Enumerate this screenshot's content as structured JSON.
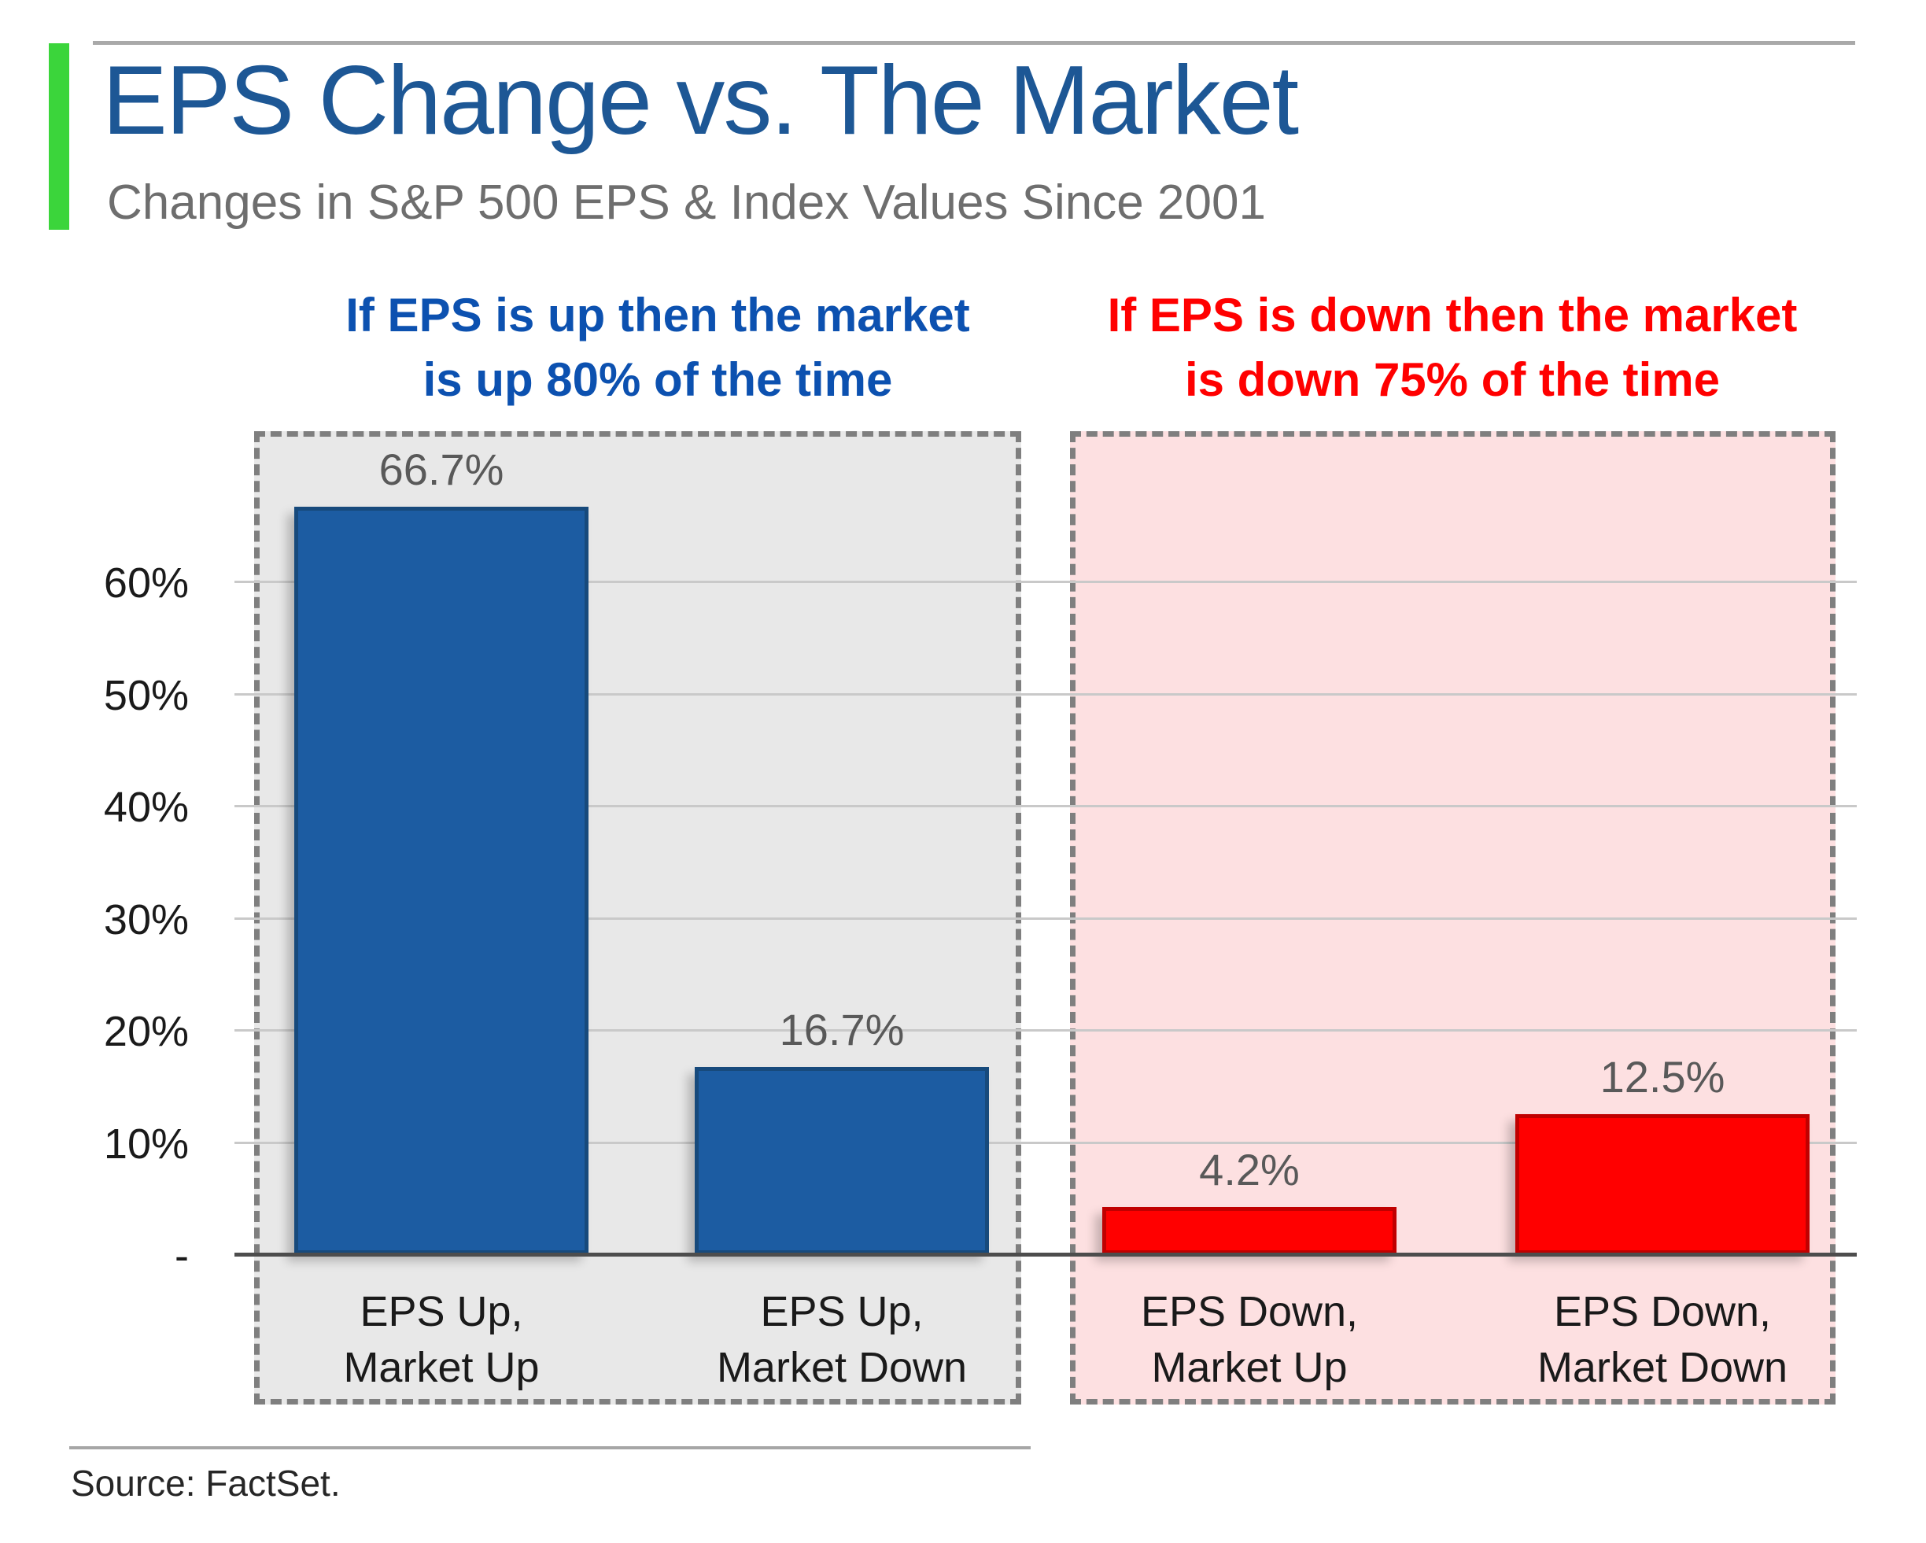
{
  "header": {
    "title": "EPS Change vs. The Market",
    "subtitle": "Changes in S&P 500 EPS & Index Values Since 2001"
  },
  "annotations": {
    "up": {
      "line1": "If EPS is up then the market",
      "line2": "is up 80% of the time",
      "color": "#0C51B0"
    },
    "down": {
      "line1": "If EPS is down then the market",
      "line2": "is down 75% of the time",
      "color": "#FF0000"
    }
  },
  "chart_data": {
    "type": "bar",
    "title": "EPS Change vs. The Market",
    "subtitle": "Changes in S&P 500 EPS & Index Values Since 2001",
    "xlabel": "",
    "ylabel": "",
    "ylim": [
      0,
      70
    ],
    "grid": true,
    "legend": "none",
    "categories": [
      "EPS Up, Market Up",
      "EPS Up, Market Down",
      "EPS Down, Market Up",
      "EPS Down, Market Down"
    ],
    "values": [
      66.7,
      16.7,
      4.2,
      12.5
    ],
    "value_labels": [
      "66.7%",
      "16.7%",
      "4.2%",
      "12.5%"
    ],
    "yticks": [
      {
        "label": "60%",
        "value": 60
      },
      {
        "label": "50%",
        "value": 50
      },
      {
        "label": "40%",
        "value": 40
      },
      {
        "label": "30%",
        "value": 30
      },
      {
        "label": "20%",
        "value": 20
      },
      {
        "label": "10%",
        "value": 10
      },
      {
        "label": "-",
        "value": 0
      }
    ],
    "groups": [
      {
        "name": "eps-up",
        "panel_bg": "#E8E8E8",
        "bar_fill": "#1C5CA2",
        "bar_border": "#174A7C",
        "bars": [
          {
            "category_line1": "EPS Up,",
            "category_line2": "Market Up",
            "value": 66.7,
            "display": "66.7%"
          },
          {
            "category_line1": "EPS Up,",
            "category_line2": "Market Down",
            "value": 16.7,
            "display": "16.7%"
          }
        ]
      },
      {
        "name": "eps-down",
        "panel_bg": "#FDE0E1",
        "bar_fill": "#FF0000",
        "bar_border": "#C00000",
        "bars": [
          {
            "category_line1": "EPS Down,",
            "category_line2": "Market Up",
            "value": 4.2,
            "display": "4.2%"
          },
          {
            "category_line1": "EPS Down,",
            "category_line2": "Market Down",
            "value": 12.5,
            "display": "12.5%"
          }
        ]
      }
    ]
  },
  "source": {
    "text": "Source: FactSet."
  }
}
